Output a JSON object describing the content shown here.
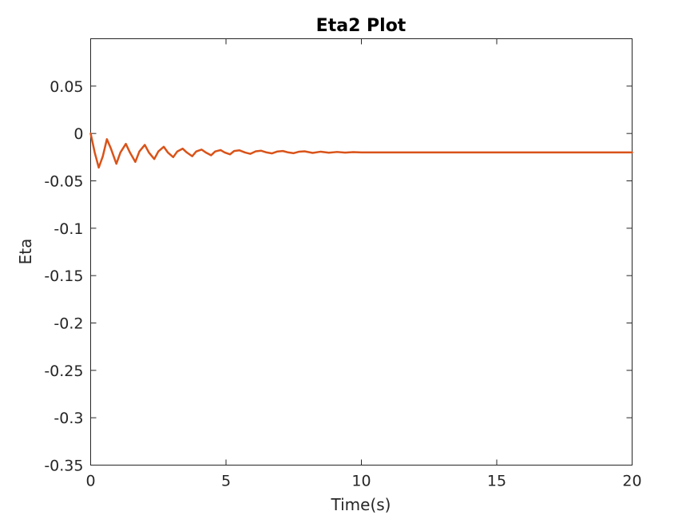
{
  "chart_data": {
    "type": "line",
    "title": "Eta2 Plot",
    "xlabel": "Time(s)",
    "ylabel": "Eta",
    "xlim": [
      0,
      20
    ],
    "ylim": [
      -0.35,
      0.1
    ],
    "xticks": [
      0,
      5,
      10,
      15,
      20
    ],
    "xtick_labels": [
      "0",
      "5",
      "10",
      "15",
      "20"
    ],
    "yticks": [
      0.05,
      0,
      -0.05,
      -0.1,
      -0.15,
      -0.2,
      -0.25,
      -0.3,
      -0.35
    ],
    "ytick_labels": [
      "0.05",
      "0",
      "-0.05",
      "-0.1",
      "-0.15",
      "-0.2",
      "-0.25",
      "-0.3",
      "-0.35"
    ],
    "grid": false,
    "legend": "none",
    "series": [
      {
        "color": "#D95319",
        "x": [
          0,
          0.15,
          0.3,
          0.45,
          0.6,
          0.75,
          0.95,
          1.1,
          1.3,
          1.45,
          1.65,
          1.8,
          2.0,
          2.15,
          2.35,
          2.5,
          2.7,
          2.85,
          3.05,
          3.2,
          3.4,
          3.55,
          3.75,
          3.9,
          4.1,
          4.25,
          4.45,
          4.6,
          4.8,
          4.95,
          5.15,
          5.3,
          5.5,
          5.7,
          5.9,
          6.1,
          6.3,
          6.5,
          6.7,
          6.9,
          7.1,
          7.3,
          7.5,
          7.7,
          7.9,
          8.2,
          8.5,
          8.8,
          9.1,
          9.4,
          9.7,
          10,
          11,
          12,
          13,
          14,
          15,
          16,
          17,
          18,
          19,
          20
        ],
        "y": [
          0,
          -0.02,
          -0.036,
          -0.024,
          -0.006,
          -0.016,
          -0.032,
          -0.02,
          -0.011,
          -0.02,
          -0.03,
          -0.019,
          -0.012,
          -0.02,
          -0.027,
          -0.019,
          -0.014,
          -0.02,
          -0.025,
          -0.019,
          -0.016,
          -0.02,
          -0.024,
          -0.019,
          -0.017,
          -0.02,
          -0.023,
          -0.019,
          -0.0175,
          -0.02,
          -0.022,
          -0.0185,
          -0.0178,
          -0.02,
          -0.0215,
          -0.0188,
          -0.0182,
          -0.02,
          -0.021,
          -0.019,
          -0.0185,
          -0.02,
          -0.0208,
          -0.0192,
          -0.0188,
          -0.0205,
          -0.0192,
          -0.0203,
          -0.0195,
          -0.0202,
          -0.0197,
          -0.02,
          -0.02,
          -0.02,
          -0.02,
          -0.02,
          -0.02,
          -0.02,
          -0.02,
          -0.02,
          -0.02,
          -0.02
        ]
      }
    ]
  }
}
